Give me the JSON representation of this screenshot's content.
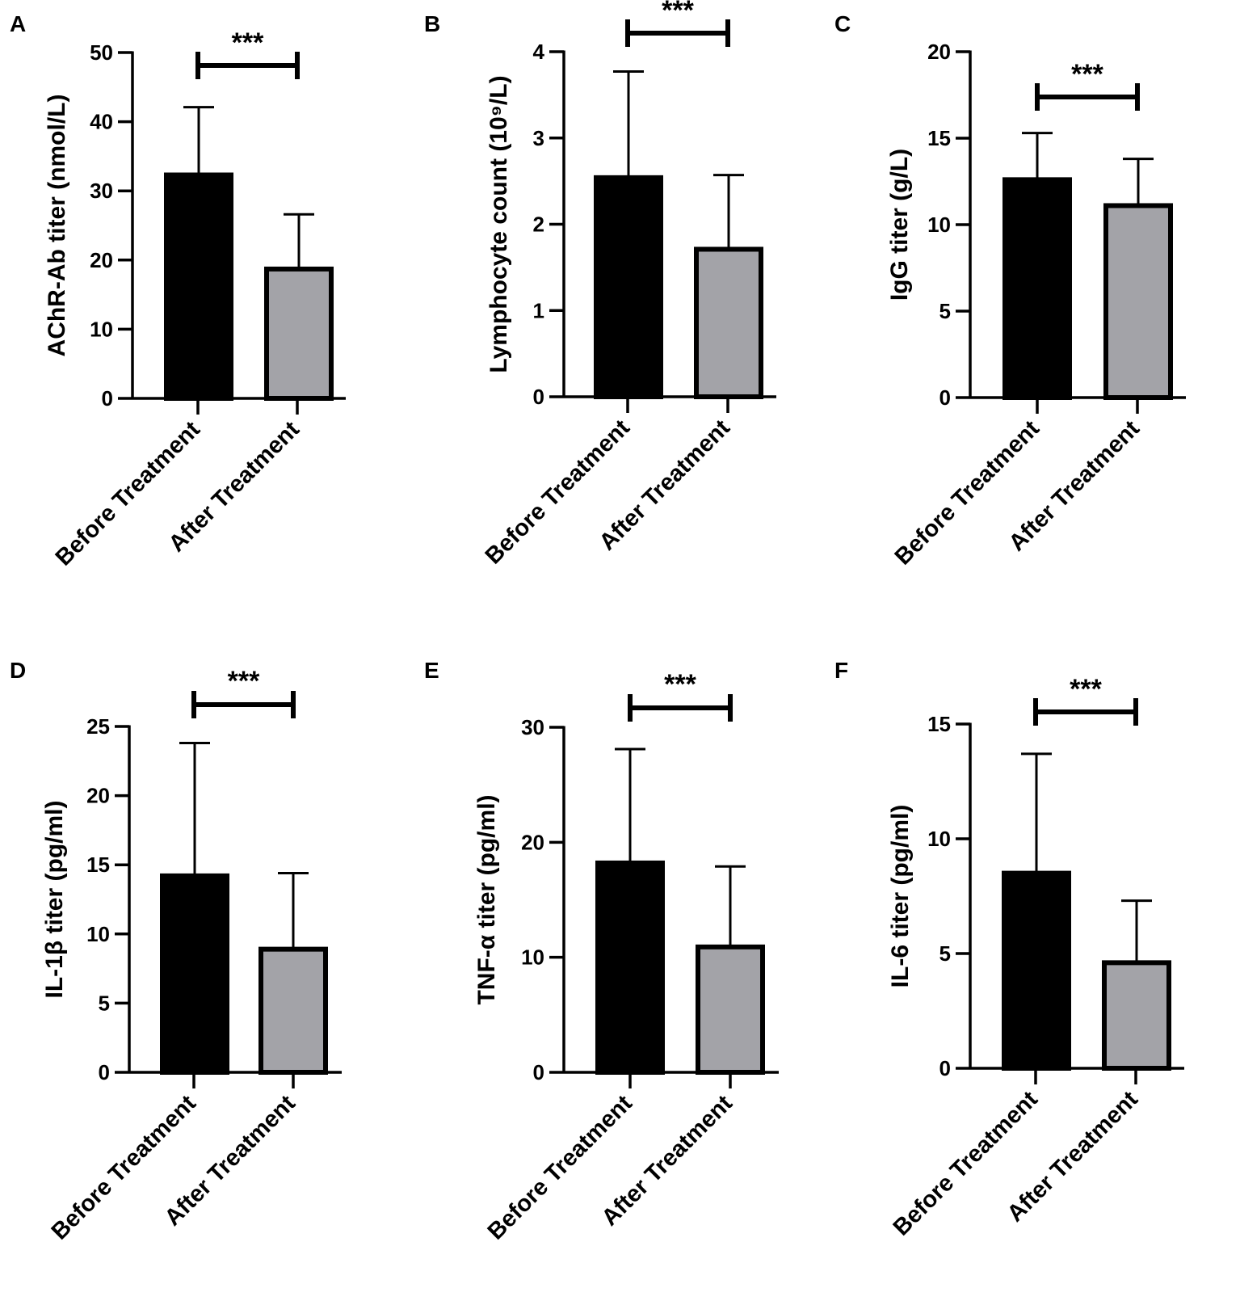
{
  "figure": {
    "bar_colors": [
      "#000000",
      "#a3a3a8"
    ],
    "axis_color": "#000000"
  },
  "chart_data": [
    {
      "panel": "A",
      "type": "bar",
      "title": "",
      "xlabel": "",
      "ylabel": "AChR-Ab titer (nmol/L)",
      "categories": [
        "Before Treatment",
        "After Treatment"
      ],
      "values": [
        32.3,
        18.7
      ],
      "error_upper": [
        42.1,
        26.6
      ],
      "ylim": [
        0,
        50
      ],
      "yticks": [
        0,
        10,
        20,
        30,
        40,
        50
      ],
      "significance": "***"
    },
    {
      "panel": "B",
      "type": "bar",
      "title": "",
      "xlabel": "",
      "ylabel": "Lymphocyte count (10⁹/L)",
      "categories": [
        "Before Treatment",
        "After Treatment"
      ],
      "values": [
        2.54,
        1.71
      ],
      "error_upper": [
        3.77,
        2.57
      ],
      "ylim": [
        0,
        4
      ],
      "yticks": [
        0,
        1,
        2,
        3,
        4
      ],
      "significance": "***"
    },
    {
      "panel": "C",
      "type": "bar",
      "title": "",
      "xlabel": "",
      "ylabel": "IgG titer (g/L)",
      "categories": [
        "Before Treatment",
        "After Treatment"
      ],
      "values": [
        12.6,
        11.1
      ],
      "error_upper": [
        15.3,
        13.8
      ],
      "ylim": [
        0,
        20
      ],
      "yticks": [
        0,
        5,
        10,
        15,
        20
      ],
      "significance": "***"
    },
    {
      "panel": "D",
      "type": "bar",
      "title": "",
      "xlabel": "",
      "ylabel": "IL-1β  titer (pg/ml)",
      "categories": [
        "Before Treatment",
        "After Treatment"
      ],
      "values": [
        14.2,
        8.9
      ],
      "error_upper": [
        23.8,
        14.4
      ],
      "ylim": [
        0,
        25
      ],
      "yticks": [
        0,
        5,
        10,
        15,
        20,
        25
      ],
      "significance": "***"
    },
    {
      "panel": "E",
      "type": "bar",
      "title": "",
      "xlabel": "",
      "ylabel": "TNF-α titer (pg/ml)",
      "categories": [
        "Before Treatment",
        "After Treatment"
      ],
      "values": [
        18.2,
        10.9
      ],
      "error_upper": [
        28.1,
        17.9
      ],
      "ylim": [
        0,
        30
      ],
      "yticks": [
        0,
        10,
        20,
        30
      ],
      "significance": "***"
    },
    {
      "panel": "F",
      "type": "bar",
      "title": "",
      "xlabel": "",
      "ylabel": "IL-6 titer (pg/ml)",
      "categories": [
        "Before Treatment",
        "After Treatment"
      ],
      "values": [
        8.5,
        4.6
      ],
      "error_upper": [
        13.7,
        7.3
      ],
      "ylim": [
        0,
        15
      ],
      "yticks": [
        0,
        5,
        10,
        15
      ],
      "significance": "***"
    }
  ]
}
